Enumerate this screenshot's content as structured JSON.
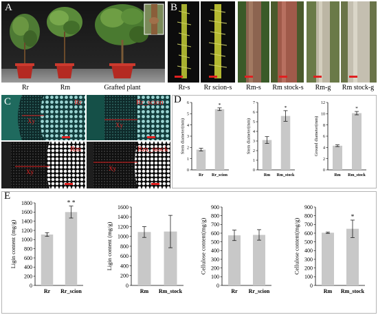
{
  "panels": {
    "A": {
      "label": "A",
      "captions": [
        "Rr",
        "Rm",
        "Grafted plant"
      ]
    },
    "B": {
      "label": "B",
      "captions": [
        "Rr-s",
        "Rr scion-s",
        "Rm-s",
        "Rm stock-s",
        "Rm-g",
        "Rm stock-g"
      ]
    },
    "C": {
      "label": "C",
      "sub_labels": [
        "Rr",
        "Rr_scion",
        "Rm",
        "Rm_stock"
      ],
      "tissue_label": "Xy"
    },
    "D": {
      "label": "D"
    },
    "E": {
      "label": "E"
    }
  },
  "colors": {
    "bar": "#c8c8c8",
    "scale_bar": "#e02020",
    "panel_border": "#b4b4b4"
  },
  "chart_data": [
    {
      "id": "D1",
      "type": "bar",
      "ylabel": "Stem diameter(mm)",
      "ylim": [
        0,
        6
      ],
      "yticks": [
        0,
        1,
        2,
        3,
        4,
        5,
        6
      ],
      "categories": [
        "Rr",
        "Rr_scion"
      ],
      "values": [
        1.8,
        5.4
      ],
      "errors": [
        0.12,
        0.12
      ],
      "significance": [
        "",
        "*"
      ]
    },
    {
      "id": "D2",
      "type": "bar",
      "ylabel": "Stem diameter(mm)",
      "ylim": [
        0,
        7
      ],
      "yticks": [
        0,
        1,
        2,
        3,
        4,
        5,
        6,
        7
      ],
      "categories": [
        "Rm",
        "Rm_stock"
      ],
      "values": [
        3.1,
        5.6
      ],
      "errors": [
        0.35,
        0.55
      ],
      "significance": [
        "",
        "*"
      ]
    },
    {
      "id": "D3",
      "type": "bar",
      "ylabel": "Ground diameter(mm)",
      "ylim": [
        0,
        12
      ],
      "yticks": [
        0,
        2,
        4,
        6,
        8,
        10,
        12
      ],
      "categories": [
        "Rm",
        "Rm_stock"
      ],
      "values": [
        4.3,
        10.1
      ],
      "errors": [
        0.15,
        0.3
      ],
      "significance": [
        "",
        "*"
      ]
    },
    {
      "id": "E1",
      "type": "bar",
      "ylabel": "Ligin content (mg/g)",
      "ylim": [
        0,
        1800
      ],
      "yticks": [
        0,
        200,
        400,
        600,
        800,
        1000,
        1200,
        1400,
        1600,
        1800
      ],
      "categories": [
        "Rr",
        "Rr_scion"
      ],
      "values": [
        1110,
        1600
      ],
      "errors": [
        40,
        130
      ],
      "significance": [
        "",
        "* *"
      ]
    },
    {
      "id": "E2",
      "type": "bar",
      "ylabel": "Ligin content (mg/g)",
      "ylim": [
        0,
        1600
      ],
      "yticks": [
        0,
        200,
        400,
        600,
        800,
        1000,
        1200,
        1400,
        1600
      ],
      "categories": [
        "Rm",
        "Rm_stock"
      ],
      "values": [
        1090,
        1100
      ],
      "errors": [
        110,
        330
      ],
      "significance": [
        "",
        ""
      ]
    },
    {
      "id": "E3",
      "type": "bar",
      "ylabel": "Cellulose content(mg/g)",
      "ylim": [
        0,
        900
      ],
      "yticks": [
        0,
        100,
        200,
        300,
        400,
        500,
        600,
        700,
        800,
        900
      ],
      "categories": [
        "Rr",
        "Rr_scion"
      ],
      "values": [
        575,
        580
      ],
      "errors": [
        60,
        60
      ],
      "significance": [
        "",
        ""
      ]
    },
    {
      "id": "E4",
      "type": "bar",
      "ylabel": "Cellulose content(mg/g)",
      "ylim": [
        0,
        900
      ],
      "yticks": [
        0,
        100,
        200,
        300,
        400,
        500,
        600,
        700,
        800,
        900
      ],
      "categories": [
        "Rm",
        "Rm_stock"
      ],
      "values": [
        605,
        650
      ],
      "errors": [
        8,
        100
      ],
      "significance": [
        "",
        "*"
      ]
    }
  ]
}
